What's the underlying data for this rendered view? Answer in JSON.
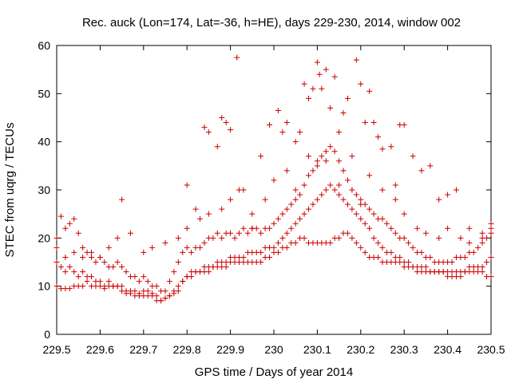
{
  "chart_data": {
    "type": "scatter",
    "title": "Rec. auck (Lon=174, Lat=-36, h=HE), days 229-230, 2014, window 002",
    "xlabel": "GPS time / Days of year 2014",
    "ylabel": "STEC from uqrg / TECUs",
    "xlim": [
      229.5,
      230.5
    ],
    "ylim": [
      0,
      60
    ],
    "xticks": [
      "229.5",
      "229.6",
      "229.7",
      "229.8",
      "229.9",
      "230",
      "230.1",
      "230.2",
      "230.3",
      "230.4",
      "230.5"
    ],
    "yticks": [
      "0",
      "10",
      "20",
      "30",
      "40",
      "50",
      "60"
    ],
    "grid": false,
    "marker": "+",
    "marker_color": "#cc0000",
    "series": [
      {
        "name": "",
        "x": [
          229.5,
          229.51,
          229.52,
          229.53,
          229.54,
          229.55,
          229.56,
          229.57,
          229.58,
          229.59,
          229.6,
          229.61,
          229.62,
          229.63,
          229.64,
          229.65,
          229.66,
          229.67,
          229.68,
          229.69,
          229.7,
          229.71,
          229.72,
          229.73,
          229.74,
          229.75,
          229.76,
          229.77,
          229.78,
          229.79,
          229.8,
          229.81,
          229.82,
          229.83,
          229.84,
          229.85,
          229.86,
          229.87,
          229.88,
          229.89,
          229.9,
          229.91,
          229.92,
          229.93,
          229.94,
          229.95,
          229.96,
          229.97,
          229.98,
          229.99,
          230.0,
          230.01,
          230.02,
          230.03,
          230.04,
          230.05,
          230.06,
          230.07,
          230.08,
          230.09,
          230.1,
          230.11,
          230.12,
          230.13,
          230.14,
          230.15,
          230.16,
          230.17,
          230.18,
          230.19,
          230.2,
          230.21,
          230.22,
          230.23,
          230.24,
          230.25,
          230.26,
          230.27,
          230.28,
          230.29,
          230.3,
          230.31,
          230.32,
          230.33,
          230.34,
          230.35,
          230.36,
          230.37,
          230.38,
          230.39,
          230.4,
          230.41,
          230.42,
          230.43,
          230.44,
          230.45,
          230.46,
          230.47,
          230.48,
          230.49,
          230.5
        ],
        "y": [
          20,
          24.5,
          22,
          23,
          24,
          21,
          18,
          17,
          16,
          15,
          16,
          15,
          14,
          14,
          15,
          14,
          13,
          12,
          12,
          11,
          12,
          11,
          10,
          10,
          9,
          9,
          11,
          13,
          15,
          17,
          18,
          17,
          18,
          18,
          19,
          20,
          20,
          21,
          20,
          21,
          21,
          20,
          21,
          22,
          21,
          22,
          22,
          21,
          22,
          22,
          23,
          24,
          25,
          26,
          27,
          28,
          29,
          31,
          33,
          34,
          36,
          37,
          38,
          39,
          38,
          36,
          34,
          32,
          30,
          29,
          28,
          27,
          26,
          25,
          24,
          24,
          23,
          22,
          21,
          20,
          20,
          19,
          18,
          17,
          17,
          16,
          16,
          15,
          15,
          15,
          15,
          15,
          16,
          16,
          16,
          17,
          17,
          18,
          19,
          20,
          21
        ]
      },
      {
        "name": "",
        "x": [
          229.5,
          229.51,
          229.52,
          229.53,
          229.54,
          229.55,
          229.56,
          229.57,
          229.58,
          229.59,
          229.6,
          229.61,
          229.62,
          229.63,
          229.64,
          229.65,
          229.66,
          229.67,
          229.68,
          229.69,
          229.7,
          229.71,
          229.72,
          229.73,
          229.74,
          229.75,
          229.76,
          229.77,
          229.78,
          229.79,
          229.8,
          229.81,
          229.82,
          229.83,
          229.84,
          229.85,
          229.86,
          229.87,
          229.88,
          229.89,
          229.9,
          229.91,
          229.92,
          229.93,
          229.94,
          229.95,
          229.96,
          229.97,
          229.98,
          229.99,
          230.0,
          230.01,
          230.02,
          230.03,
          230.04,
          230.05,
          230.06,
          230.07,
          230.08,
          230.09,
          230.1,
          230.11,
          230.12,
          230.13,
          230.14,
          230.15,
          230.16,
          230.17,
          230.18,
          230.19,
          230.2,
          230.21,
          230.22,
          230.23,
          230.24,
          230.25,
          230.26,
          230.27,
          230.28,
          230.29,
          230.3,
          230.31,
          230.32,
          230.33,
          230.34,
          230.35,
          230.36,
          230.37,
          230.38,
          230.39,
          230.4,
          230.41,
          230.42,
          230.43,
          230.44,
          230.45,
          230.46,
          230.47,
          230.48,
          230.49,
          230.5
        ],
        "y": [
          15,
          14,
          13,
          14,
          13,
          12,
          13,
          12,
          12,
          11,
          11,
          10,
          11,
          10,
          10,
          10,
          9,
          9,
          9,
          8.5,
          9,
          9,
          8.5,
          8,
          7,
          7.5,
          8,
          8.5,
          9,
          11,
          12,
          12,
          13,
          13,
          14,
          14,
          14,
          15,
          15,
          15,
          16,
          16,
          16,
          16,
          17,
          17,
          17,
          17,
          18,
          18,
          18,
          19,
          20,
          21,
          22,
          23,
          24,
          25,
          26,
          27,
          28,
          29,
          30,
          31,
          30,
          29,
          28,
          27,
          26,
          25,
          24,
          23,
          22,
          20,
          19,
          18,
          17,
          17,
          16,
          16,
          15,
          15,
          14,
          14,
          14,
          14,
          13,
          13,
          13,
          13,
          13,
          13,
          13,
          13,
          13,
          14,
          14,
          14,
          14,
          15,
          16
        ]
      },
      {
        "name": "",
        "x": [
          229.5,
          229.51,
          229.52,
          229.53,
          229.54,
          229.55,
          229.56,
          229.57,
          229.58,
          229.59,
          229.6,
          229.61,
          229.62,
          229.63,
          229.64,
          229.65,
          229.66,
          229.67,
          229.68,
          229.69,
          229.7,
          229.71,
          229.72,
          229.73,
          229.74,
          229.75,
          229.76,
          229.77,
          229.78,
          229.79,
          229.8,
          229.81,
          229.82,
          229.83,
          229.84,
          229.85,
          229.86,
          229.87,
          229.88,
          229.89,
          229.9,
          229.91,
          229.92,
          229.93,
          229.94,
          229.95,
          229.96,
          229.97,
          229.98,
          229.99,
          230.0,
          230.01,
          230.02,
          230.03,
          230.04,
          230.05,
          230.06,
          230.07,
          230.08,
          230.09,
          230.1,
          230.11,
          230.12,
          230.13,
          230.14,
          230.15,
          230.16,
          230.17,
          230.18,
          230.19,
          230.2,
          230.21,
          230.22,
          230.23,
          230.24,
          230.25,
          230.26,
          230.27,
          230.28,
          230.29,
          230.3,
          230.31,
          230.32,
          230.33,
          230.34,
          230.35,
          230.36,
          230.37,
          230.38,
          230.39,
          230.4,
          230.41,
          230.42,
          230.43,
          230.44,
          230.45,
          230.46,
          230.47,
          230.48,
          230.49,
          230.5
        ],
        "y": [
          10,
          9.5,
          9.5,
          9.5,
          10,
          10,
          10,
          11,
          10,
          10,
          10,
          9.5,
          10,
          10,
          10,
          9,
          8.5,
          8.5,
          8,
          8,
          8,
          8,
          8,
          7,
          7,
          7.5,
          8,
          9,
          10,
          11,
          12,
          13,
          13,
          13,
          13,
          13,
          14,
          14,
          14,
          14,
          15,
          15,
          15,
          15,
          15,
          15,
          15,
          15,
          16,
          16,
          17,
          17,
          18,
          18,
          19,
          19,
          20,
          20,
          19,
          19,
          19,
          19,
          19,
          19,
          20,
          20,
          21,
          21,
          20,
          19,
          18,
          17,
          16,
          16,
          16,
          15,
          15,
          15,
          15,
          15,
          14,
          14,
          14,
          13,
          13,
          13,
          13,
          13,
          13,
          13,
          12,
          12,
          12,
          12,
          13,
          13,
          13,
          13,
          13,
          12,
          12
        ]
      },
      {
        "name": "",
        "x": [
          229.8,
          229.82,
          229.84,
          229.85,
          229.87,
          229.88,
          229.89,
          229.9,
          229.915,
          229.93,
          229.95,
          229.97,
          229.99,
          230.01,
          230.02,
          230.03,
          230.05,
          230.06,
          230.07,
          230.08,
          230.09,
          230.1,
          230.105,
          230.11,
          230.12,
          230.13,
          230.14,
          230.15,
          230.16,
          230.17,
          230.18,
          230.19,
          230.2,
          230.21,
          230.22,
          230.23,
          230.24,
          230.25,
          230.27,
          230.28,
          230.29,
          230.3,
          230.32,
          230.34,
          230.36,
          230.38,
          230.4,
          230.42,
          230.45,
          230.48,
          230.5
        ],
        "y": [
          31,
          26,
          43,
          42,
          39,
          45,
          44,
          42.5,
          57.5,
          30,
          22,
          37,
          43.5,
          46.5,
          42,
          44,
          40,
          42,
          52,
          49,
          51,
          56.5,
          54,
          51,
          55,
          47,
          53.5,
          42,
          46,
          49,
          37,
          57,
          52,
          44,
          50.5,
          44,
          41,
          38.5,
          39,
          31,
          43.5,
          43.5,
          37,
          34,
          35,
          28,
          29,
          30,
          22,
          21,
          23
        ]
      },
      {
        "name": "",
        "x": [
          229.5,
          229.52,
          229.54,
          229.56,
          229.58,
          229.6,
          229.62,
          229.64,
          229.65,
          229.67,
          229.7,
          229.72,
          229.75,
          229.78,
          229.8,
          229.83,
          229.85,
          229.88,
          229.9,
          229.92,
          229.95,
          229.98,
          230.0,
          230.03,
          230.05,
          230.08,
          230.1,
          230.12,
          230.15,
          230.18,
          230.2,
          230.22,
          230.25,
          230.28,
          230.3,
          230.33,
          230.35,
          230.38,
          230.4,
          230.43,
          230.45,
          230.48,
          230.5
        ],
        "y": [
          18,
          16,
          17,
          16,
          17,
          16,
          18,
          20,
          28,
          21,
          17,
          18,
          19,
          20,
          22,
          24,
          25,
          26,
          28,
          30,
          25,
          28,
          32,
          34,
          30,
          37,
          35,
          36,
          31,
          30,
          27,
          33,
          30,
          28,
          25,
          22,
          21,
          20,
          22,
          20,
          19,
          20,
          22
        ]
      }
    ]
  }
}
